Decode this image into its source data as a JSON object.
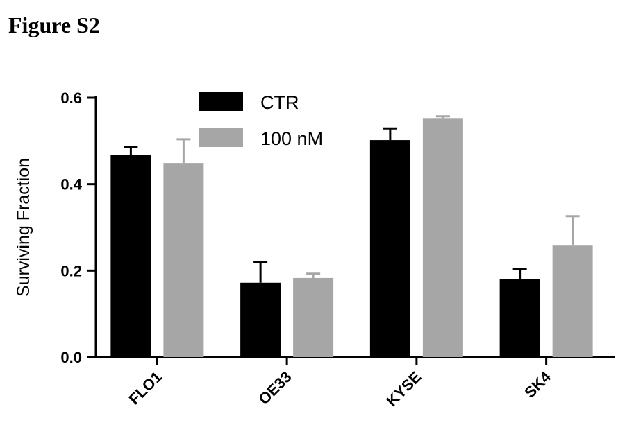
{
  "chart_data": {
    "type": "bar",
    "title": "Figure S2",
    "xlabel": "",
    "ylabel": "Surviving Fraction",
    "ylim": [
      0,
      0.6
    ],
    "yticks": [
      "0.0",
      "0.2",
      "0.4",
      "0.6"
    ],
    "categories": [
      "FLO1",
      "OE33",
      "KYSE",
      "SK4"
    ],
    "legend_position": "top-left",
    "grid": false,
    "series": [
      {
        "name": "CTR",
        "color": "#000000",
        "values": [
          0.468,
          0.172,
          0.502,
          0.18
        ],
        "error": [
          0.018,
          0.048,
          0.027,
          0.024
        ]
      },
      {
        "name": "100 nM",
        "color": "#a6a6a6",
        "values": [
          0.449,
          0.183,
          0.553,
          0.258
        ],
        "error": [
          0.055,
          0.01,
          0.004,
          0.068
        ]
      }
    ]
  }
}
